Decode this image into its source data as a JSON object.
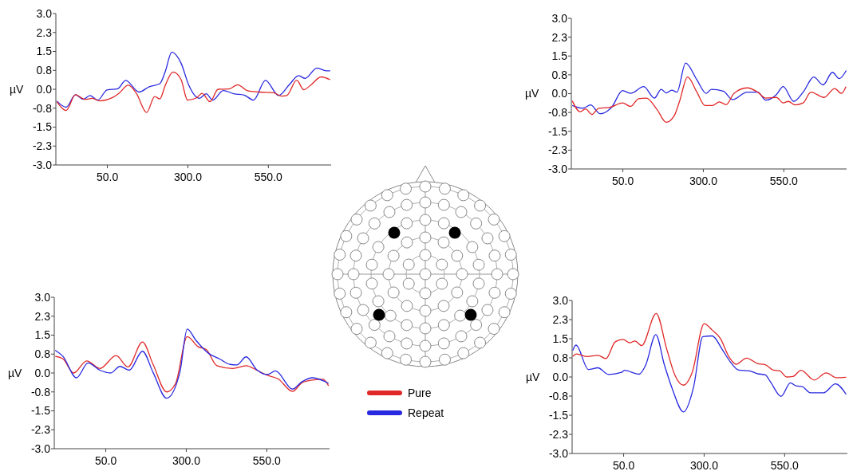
{
  "chart_data": [
    {
      "type": "line",
      "ylabel": "µV",
      "xlim": [
        -110,
        745
      ],
      "ylim": [
        -3.0,
        3.0
      ],
      "xticks": [
        {
          "value": 50,
          "label": "50.0"
        },
        {
          "value": 300,
          "label": "300.0"
        },
        {
          "value": 550,
          "label": "550.0"
        }
      ],
      "yticks": [
        {
          "value": 3,
          "label": "3.0"
        },
        {
          "value": 2.25,
          "label": "2.3"
        },
        {
          "value": 1.5,
          "label": "1.5"
        },
        {
          "value": 0.75,
          "label": "0.8"
        },
        {
          "value": 0,
          "label": "0.0"
        },
        {
          "value": -0.75,
          "label": "-0.8"
        },
        {
          "value": -1.5,
          "label": "-1.5"
        },
        {
          "value": -2.25,
          "label": "-2.3"
        },
        {
          "value": -3,
          "label": "-3.0"
        }
      ],
      "grid": false,
      "legend": false,
      "series": [
        {
          "color": "#2828e0",
          "x": [
            -107,
            -78,
            -49,
            -25,
            -4,
            20,
            49,
            82,
            107,
            148,
            180,
            213,
            230,
            250,
            279,
            303,
            336,
            357,
            377,
            410,
            443,
            475,
            504,
            541,
            582,
            615,
            644,
            664,
            701,
            730,
            742
          ],
          "values": [
            -0.47,
            -0.71,
            -0.22,
            -0.4,
            -0.25,
            -0.43,
            -0.03,
            0.02,
            0.35,
            -0.11,
            0.1,
            0.22,
            0.71,
            1.47,
            1.03,
            0.16,
            -0.36,
            -0.18,
            -0.43,
            -0.05,
            -0.18,
            -0.23,
            -0.43,
            0.35,
            -0.25,
            0.18,
            0.54,
            0.43,
            0.84,
            0.73,
            0.73
          ]
        },
        {
          "color": "#e02828",
          "x": [
            -107,
            -78,
            -49,
            -20,
            4,
            25,
            66,
            86,
            115,
            140,
            172,
            197,
            213,
            230,
            254,
            279,
            299,
            328,
            344,
            369,
            394,
            427,
            455,
            484,
            521,
            566,
            591,
            607,
            638,
            660,
            681,
            714,
            742
          ],
          "values": [
            -0.49,
            -0.84,
            -0.22,
            -0.4,
            -0.36,
            -0.46,
            -0.33,
            -0.16,
            0.16,
            -0.16,
            -0.92,
            -0.29,
            -0.38,
            0.16,
            0.68,
            0.38,
            -0.43,
            -0.33,
            -0.16,
            -0.49,
            0,
            0.01,
            0.18,
            -0.05,
            -0.11,
            -0.14,
            -0.27,
            -0.25,
            0.36,
            -0.02,
            0.16,
            0.49,
            0.38
          ]
        }
      ]
    },
    {
      "type": "line",
      "ylabel": "µV",
      "xlim": [
        -110,
        745
      ],
      "ylim": [
        -3.0,
        3.0
      ],
      "xticks": [
        {
          "value": 50,
          "label": "50.0"
        },
        {
          "value": 300,
          "label": "300.0"
        },
        {
          "value": 550,
          "label": "550.0"
        }
      ],
      "yticks": [
        {
          "value": 3,
          "label": "3.0"
        },
        {
          "value": 2.25,
          "label": "2.3"
        },
        {
          "value": 1.5,
          "label": "1.5"
        },
        {
          "value": 0.75,
          "label": "0.8"
        },
        {
          "value": 0,
          "label": "0.0"
        },
        {
          "value": -0.75,
          "label": "-0.8"
        },
        {
          "value": -1.5,
          "label": "-1.5"
        },
        {
          "value": -2.25,
          "label": "-2.3"
        },
        {
          "value": -3,
          "label": "-3.0"
        }
      ],
      "grid": false,
      "legend": false,
      "series": [
        {
          "color": "#2828e0",
          "x": [
            -107,
            -74,
            -50,
            -21,
            16,
            49,
            74,
            115,
            148,
            169,
            185,
            202,
            218,
            245,
            280,
            309,
            325,
            362,
            391,
            436,
            469,
            494,
            527,
            548,
            581,
            610,
            643,
            672,
            701,
            722,
            744
          ],
          "values": [
            -0.47,
            -0.58,
            -0.45,
            -0.8,
            -0.53,
            0.12,
            0.01,
            0.28,
            -0.18,
            0.17,
            0.03,
            0.14,
            0.06,
            1.22,
            0.55,
            0.01,
            0.17,
            0.1,
            -0.24,
            0.06,
            0.06,
            -0.26,
            -0.04,
            0.28,
            -0.31,
            0.06,
            0.66,
            0.35,
            0.85,
            0.6,
            0.92
          ]
        },
        {
          "color": "#e02828",
          "x": [
            -107,
            -83,
            -66,
            -46,
            -25,
            8,
            49,
            74,
            99,
            123,
            156,
            185,
            210,
            226,
            251,
            280,
            305,
            329,
            350,
            371,
            395,
            436,
            469,
            494,
            527,
            548,
            564,
            585,
            610,
            634,
            675,
            708,
            729,
            743
          ],
          "values": [
            -0.29,
            -0.72,
            -0.61,
            -0.83,
            -0.58,
            -0.55,
            -0.37,
            -0.51,
            -0.2,
            -0.18,
            -0.63,
            -1.14,
            -0.87,
            -0.31,
            0.66,
            0.06,
            -0.47,
            -0.47,
            -0.33,
            -0.44,
            0.01,
            0.23,
            0.06,
            -0.18,
            -0.15,
            -0.37,
            -0.31,
            -0.45,
            -0.37,
            0.06,
            -0.15,
            0.2,
            0.01,
            0.28
          ]
        }
      ]
    },
    {
      "type": "line",
      "ylabel": "µV",
      "xlim": [
        -110,
        745
      ],
      "ylim": [
        -3.0,
        3.0
      ],
      "xticks": [
        {
          "value": 50,
          "label": "50.0"
        },
        {
          "value": 300,
          "label": "300.0"
        },
        {
          "value": 550,
          "label": "550.0"
        }
      ],
      "yticks": [
        {
          "value": 3,
          "label": "3.0"
        },
        {
          "value": 2.25,
          "label": "2.3"
        },
        {
          "value": 1.5,
          "label": "1.5"
        },
        {
          "value": 0.75,
          "label": "0.8"
        },
        {
          "value": 0,
          "label": "0.0"
        },
        {
          "value": -0.75,
          "label": "-0.8"
        },
        {
          "value": -1.5,
          "label": "-1.5"
        },
        {
          "value": -2.25,
          "label": "-2.3"
        },
        {
          "value": -3,
          "label": "-3.0"
        }
      ],
      "grid": false,
      "legend": "right",
      "series": [
        {
          "name": "Pure",
          "color": "#e02828",
          "x": [
            -107,
            -83,
            -50,
            -9,
            32,
            82,
            119,
            164,
            197,
            239,
            267,
            303,
            337,
            362,
            395,
            444,
            486,
            519,
            552,
            585,
            630,
            659,
            692,
            725,
            742
          ],
          "values": [
            0.66,
            0.56,
            0,
            0.48,
            0.18,
            0.69,
            0.24,
            1.23,
            0.34,
            -0.75,
            -0.41,
            1.44,
            1.04,
            0.93,
            0.29,
            0.18,
            0.29,
            0.11,
            -0.09,
            -0.23,
            -0.73,
            -0.39,
            -0.28,
            -0.25,
            -0.51
          ]
        },
        {
          "name": "Repeat",
          "color": "#2828e0",
          "x": [
            -107,
            -83,
            -41,
            -5,
            32,
            65,
            94,
            123,
            164,
            197,
            239,
            280,
            303,
            329,
            370,
            403,
            436,
            457,
            486,
            519,
            552,
            577,
            630,
            659,
            692,
            742
          ],
          "values": [
            0.9,
            0.66,
            -0.19,
            0.4,
            0.11,
            0,
            0.26,
            0.11,
            0.86,
            0.02,
            -1.0,
            0.02,
            1.74,
            1.31,
            0.77,
            0.56,
            0.34,
            0.32,
            0.64,
            0.13,
            -0.06,
            0.08,
            -0.64,
            -0.35,
            -0.19,
            -0.41
          ]
        }
      ]
    },
    {
      "type": "line",
      "ylabel": "µV",
      "xlim": [
        -110,
        745
      ],
      "ylim": [
        -3.0,
        3.0
      ],
      "xticks": [
        {
          "value": 50,
          "label": "50.0"
        },
        {
          "value": 300,
          "label": "300.0"
        },
        {
          "value": 550,
          "label": "550.0"
        }
      ],
      "yticks": [
        {
          "value": 3,
          "label": "3.0"
        },
        {
          "value": 2.25,
          "label": "2.3"
        },
        {
          "value": 1.5,
          "label": "1.5"
        },
        {
          "value": 0.75,
          "label": "0.8"
        },
        {
          "value": 0,
          "label": "0.0"
        },
        {
          "value": -0.75,
          "label": "-0.8"
        },
        {
          "value": -1.5,
          "label": "-1.5"
        },
        {
          "value": -2.25,
          "label": "-2.3"
        },
        {
          "value": -3,
          "label": "-3.0"
        }
      ],
      "grid": false,
      "legend": false,
      "series": [
        {
          "color": "#2828e0",
          "x": [
            -108,
            -98,
            -59,
            -30,
            3,
            44,
            52,
            98,
            118,
            150,
            176,
            201,
            236,
            267,
            296,
            325,
            358,
            382,
            407,
            440,
            465,
            490,
            506,
            539,
            568,
            585,
            605,
            630,
            671,
            708,
            741
          ],
          "values": [
            1.04,
            1.25,
            0.29,
            0.36,
            0.1,
            0.18,
            0.26,
            0.11,
            0.45,
            1.66,
            0.5,
            -0.46,
            -1.37,
            -0.41,
            1.58,
            1.61,
            1.04,
            0.58,
            0.27,
            0.24,
            0.13,
            0.08,
            -0.19,
            -0.76,
            -0.23,
            -0.35,
            -0.38,
            -0.62,
            -0.62,
            -0.27,
            -0.68
          ]
        },
        {
          "color": "#e02828",
          "x": [
            -108,
            -96,
            -63,
            -30,
            -5,
            24,
            48,
            69,
            85,
            106,
            151,
            184,
            209,
            236,
            263,
            300,
            325,
            350,
            378,
            399,
            432,
            465,
            490,
            515,
            535,
            556,
            576,
            601,
            642,
            679,
            712,
            741
          ],
          "values": [
            0.8,
            0.9,
            0.8,
            0.85,
            0.72,
            1.38,
            1.47,
            1.34,
            1.41,
            1.23,
            2.49,
            1.09,
            0.08,
            -0.32,
            0.18,
            2.09,
            1.84,
            1.52,
            0.77,
            0.5,
            0.74,
            0.53,
            0.48,
            0.27,
            0.24,
            0,
            0.02,
            0.26,
            -0.12,
            0.16,
            -0.03,
            -0.01
          ]
        }
      ]
    }
  ]
}
